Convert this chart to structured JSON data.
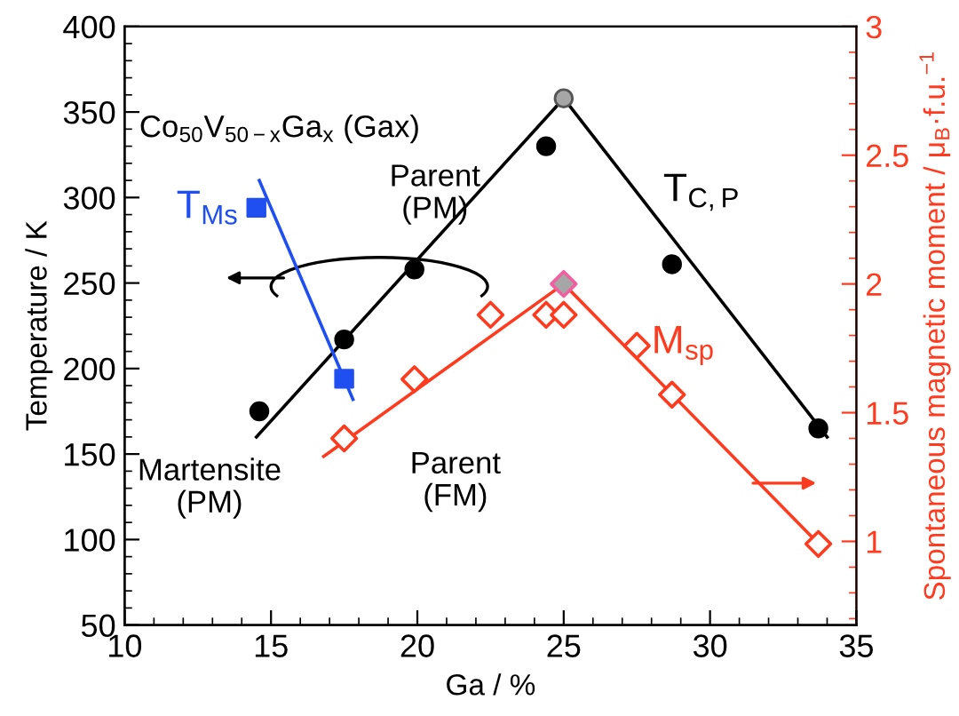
{
  "chart_data": {
    "type": "scatter",
    "xlabel": "Ga / %",
    "ylabel": "Temperature / K",
    "y2label": "Spontaneous magnetic moment / μ$_{B}$·f.u.$^{−1}$",
    "xlim": [
      10,
      35
    ],
    "xticks": [
      10,
      15,
      20,
      25,
      30,
      35
    ],
    "ylim": [
      50,
      400
    ],
    "yticks": [
      50,
      100,
      150,
      200,
      250,
      300,
      350,
      400
    ],
    "y2lim": [
      0.675,
      3
    ],
    "y2ticks": [
      1,
      1.5,
      2,
      2.5,
      3
    ],
    "grid": false,
    "legend": false,
    "series": [
      {
        "name": "T$_{C,P}$",
        "marker": "circle",
        "color": "#000000",
        "x": [
          14.6,
          17.5,
          19.9,
          24.4,
          28.7,
          33.7
        ],
        "values": [
          175,
          217,
          258,
          330,
          261,
          165
        ]
      },
      {
        "marker": "circle",
        "color": "#a6a6a6",
        "x": [
          25
        ],
        "values": [
          358
        ]
      },
      {
        "type": "line",
        "marker": "none",
        "color": "#000000",
        "x": [
          14.5,
          25,
          34
        ],
        "values": [
          160,
          358,
          160
        ]
      },
      {
        "name": "T$_{Ms}$",
        "marker": "square",
        "color": "#1f4ff0",
        "x": [
          14.5,
          17.5
        ],
        "values": [
          294,
          194
        ]
      },
      {
        "type": "line",
        "marker": "none",
        "color": "#1f4ff0",
        "x": [
          14.6,
          17.8
        ],
        "values": [
          310,
          182
        ]
      },
      {
        "name": "M$_{sp}$",
        "marker": "diamond",
        "axis": "y2",
        "color": "#ff3b1f",
        "x": [
          17.5,
          19.9,
          22.5,
          24.4,
          25,
          27.5,
          28.7,
          33.7
        ],
        "values": [
          1.4,
          1.63,
          1.88,
          1.88,
          1.88,
          1.76,
          1.57,
          0.99
        ]
      },
      {
        "marker": "diamond",
        "axis": "y2",
        "color": "#f060a0",
        "x": [
          25
        ],
        "values": [
          2.0
        ]
      },
      {
        "type": "line",
        "marker": "none",
        "axis": "y2",
        "color": "#ff3b1f",
        "x": [
          16.8,
          25,
          33.8
        ],
        "values": [
          1.33,
          2.0,
          0.98
        ]
      }
    ],
    "annotations": [
      "Co$_{50}$V$_{50−x}$Ga$_{x}$ (Gax)",
      "Parent\n(PM)",
      "Martensite\n(PM)",
      "Parent\n(FM)"
    ]
  }
}
